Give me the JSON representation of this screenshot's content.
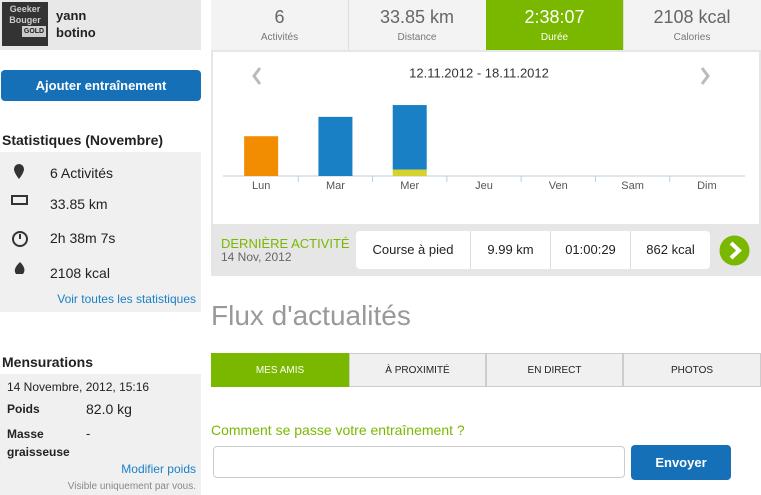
{
  "profile": {
    "badge": [
      "Geeker",
      "Bouger",
      "GOLD"
    ],
    "name": [
      "yann",
      "botino"
    ]
  },
  "sidebar": {
    "add_button": "Ajouter entraînement",
    "stats_title": "Statistiques (Novembre)",
    "stats": [
      "6 Activités",
      "33.85 km",
      "2h 38m 7s",
      "2108 kcal"
    ],
    "stats_link": "Voir toutes les statistiques",
    "measures_title": "Mensurations",
    "measures_date": "14 Novembre, 2012, 15:16",
    "measures": [
      {
        "label": "Poids",
        "value": "82.0 kg"
      },
      {
        "label": "Masse graisseuse",
        "value": "-"
      }
    ],
    "measures_link": "Modifier poids",
    "measures_note": "Visible uniquement par vous."
  },
  "summary": [
    {
      "value": "6",
      "label": "Activités"
    },
    {
      "value": "33.85 km",
      "label": "Distance"
    },
    {
      "value": "2:38:07",
      "label": "Durée"
    },
    {
      "value": "2108 kcal",
      "label": "Calories"
    }
  ],
  "chart_data": {
    "type": "bar",
    "title": "12.11.2012 - 18.11.2012",
    "categories": [
      "Lun",
      "Mar",
      "Mer",
      "Jeu",
      "Ven",
      "Sam",
      "Dim"
    ],
    "series": [
      {
        "color": "#d6d22c",
        "values": [
          0,
          0,
          6,
          0,
          0,
          0,
          0
        ]
      },
      {
        "color": "#f28c00",
        "values": [
          37,
          0,
          0,
          0,
          0,
          0,
          0
        ]
      },
      {
        "color": "#1a80c6",
        "values": [
          0,
          55,
          60,
          0,
          0,
          0,
          0
        ]
      }
    ],
    "ylim": [
      0,
      80
    ]
  },
  "last_activity": {
    "heading": "DERNIÈRE ACTIVITÉ",
    "date": "14 Nov, 2012",
    "cells": [
      "Course à pied",
      "9.99 km",
      "01:00:29",
      "862 kcal"
    ]
  },
  "feed": {
    "title": "Flux d'actualités",
    "tabs": [
      "MES AMIS",
      "À PROXIMITÉ",
      "EN DIRECT",
      "PHOTOS"
    ],
    "prompt": "Comment se passe votre entraînement ?",
    "button": "Envoyer"
  }
}
